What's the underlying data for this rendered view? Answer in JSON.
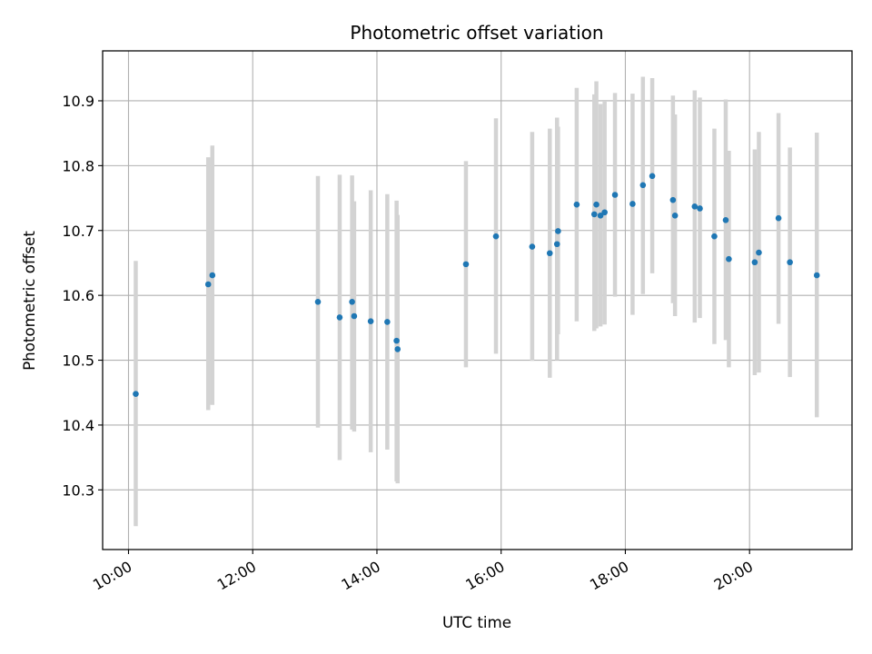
{
  "chart_data": {
    "type": "scatter",
    "title": "Photometric offset variation",
    "xlabel": "UTC time",
    "ylabel": "Photometric offset",
    "x_ticks": [
      "10:00",
      "12:00",
      "14:00",
      "16:00",
      "18:00",
      "20:00"
    ],
    "y_ticks": [
      "10.3",
      "10.4",
      "10.5",
      "10.6",
      "10.7",
      "10.8",
      "10.9"
    ],
    "xlim": [
      "09:35",
      "21:39"
    ],
    "ylim": [
      10.208,
      10.977
    ],
    "grid": true,
    "colors": {
      "points": "#1f77b4",
      "errorbars": "#d3d3d3",
      "grid": "#b0b0b0"
    },
    "series": [
      {
        "points": [
          {
            "x": "10:07",
            "y": 10.448,
            "err_low": 10.244,
            "err_high": 10.653
          },
          {
            "x": "11:17",
            "y": 10.617,
            "err_low": 10.423,
            "err_high": 10.813
          },
          {
            "x": "11:21",
            "y": 10.631,
            "err_low": 10.431,
            "err_high": 10.831
          },
          {
            "x": "13:03",
            "y": 10.59,
            "err_low": 10.396,
            "err_high": 10.784
          },
          {
            "x": "13:24",
            "y": 10.566,
            "err_low": 10.346,
            "err_high": 10.786
          },
          {
            "x": "13:36",
            "y": 10.59,
            "err_low": 10.393,
            "err_high": 10.785
          },
          {
            "x": "13:38",
            "y": 10.568,
            "err_low": 10.39,
            "err_high": 10.745
          },
          {
            "x": "13:54",
            "y": 10.56,
            "err_low": 10.358,
            "err_high": 10.762
          },
          {
            "x": "14:10",
            "y": 10.559,
            "err_low": 10.362,
            "err_high": 10.756
          },
          {
            "x": "14:19",
            "y": 10.53,
            "err_low": 10.313,
            "err_high": 10.746
          },
          {
            "x": "14:20",
            "y": 10.517,
            "err_low": 10.31,
            "err_high": 10.724
          },
          {
            "x": "15:26",
            "y": 10.648,
            "err_low": 10.489,
            "err_high": 10.807
          },
          {
            "x": "15:55",
            "y": 10.691,
            "err_low": 10.51,
            "err_high": 10.873
          },
          {
            "x": "16:30",
            "y": 10.675,
            "err_low": 10.499,
            "err_high": 10.852
          },
          {
            "x": "16:47",
            "y": 10.665,
            "err_low": 10.473,
            "err_high": 10.857
          },
          {
            "x": "16:54",
            "y": 10.679,
            "err_low": 10.5,
            "err_high": 10.874
          },
          {
            "x": "16:55",
            "y": 10.699,
            "err_low": 10.54,
            "err_high": 10.86
          },
          {
            "x": "17:13",
            "y": 10.74,
            "err_low": 10.56,
            "err_high": 10.92
          },
          {
            "x": "17:30",
            "y": 10.725,
            "err_low": 10.545,
            "err_high": 10.91
          },
          {
            "x": "17:32",
            "y": 10.74,
            "err_low": 10.549,
            "err_high": 10.93
          },
          {
            "x": "17:36",
            "y": 10.723,
            "err_low": 10.552,
            "err_high": 10.895
          },
          {
            "x": "17:40",
            "y": 10.728,
            "err_low": 10.555,
            "err_high": 10.9
          },
          {
            "x": "17:50",
            "y": 10.755,
            "err_low": 10.598,
            "err_high": 10.912
          },
          {
            "x": "18:07",
            "y": 10.741,
            "err_low": 10.57,
            "err_high": 10.911
          },
          {
            "x": "18:17",
            "y": 10.77,
            "err_low": 10.602,
            "err_high": 10.937
          },
          {
            "x": "18:26",
            "y": 10.784,
            "err_low": 10.634,
            "err_high": 10.935
          },
          {
            "x": "18:46",
            "y": 10.747,
            "err_low": 10.588,
            "err_high": 10.908
          },
          {
            "x": "18:48",
            "y": 10.723,
            "err_low": 10.568,
            "err_high": 10.879
          },
          {
            "x": "19:07",
            "y": 10.737,
            "err_low": 10.558,
            "err_high": 10.916
          },
          {
            "x": "19:12",
            "y": 10.734,
            "err_low": 10.565,
            "err_high": 10.905
          },
          {
            "x": "19:26",
            "y": 10.691,
            "err_low": 10.525,
            "err_high": 10.857
          },
          {
            "x": "19:37",
            "y": 10.716,
            "err_low": 10.531,
            "err_high": 10.902
          },
          {
            "x": "19:40",
            "y": 10.656,
            "err_low": 10.489,
            "err_high": 10.823
          },
          {
            "x": "20:05",
            "y": 10.651,
            "err_low": 10.477,
            "err_high": 10.825
          },
          {
            "x": "20:09",
            "y": 10.666,
            "err_low": 10.481,
            "err_high": 10.852
          },
          {
            "x": "20:28",
            "y": 10.719,
            "err_low": 10.556,
            "err_high": 10.881
          },
          {
            "x": "20:39",
            "y": 10.651,
            "err_low": 10.474,
            "err_high": 10.828
          },
          {
            "x": "21:05",
            "y": 10.631,
            "err_low": 10.412,
            "err_high": 10.851
          }
        ]
      }
    ]
  }
}
